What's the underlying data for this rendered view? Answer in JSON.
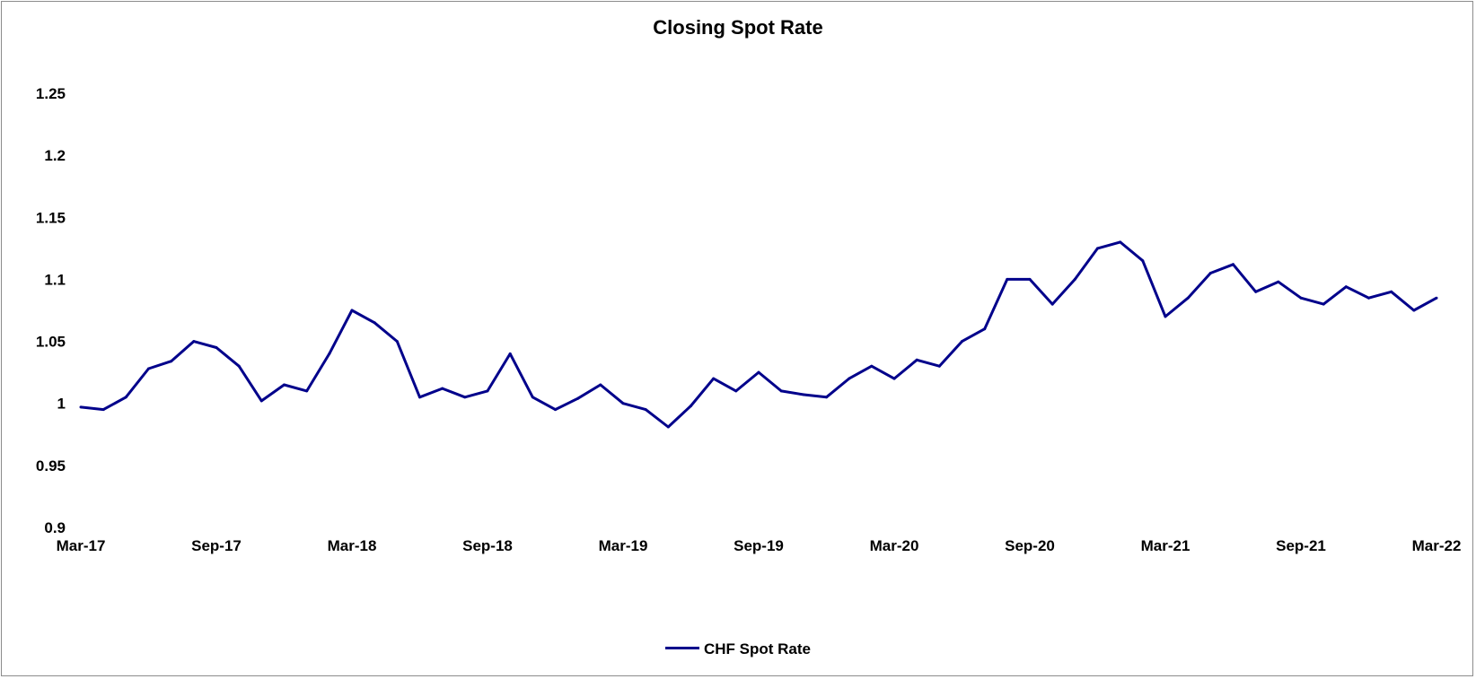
{
  "chart_data": {
    "type": "line",
    "title": "Closing Spot Rate",
    "xlabel": "",
    "ylabel": "",
    "x_ticks": [
      "Mar-17",
      "Sep-17",
      "Mar-18",
      "Sep-18",
      "Mar-19",
      "Sep-19",
      "Mar-20",
      "Sep-20",
      "Mar-21",
      "Sep-21",
      "Mar-22"
    ],
    "y_ticks": [
      "0.9",
      "0.95",
      "1",
      "1.05",
      "1.1",
      "1.15",
      "1.2",
      "1.25"
    ],
    "ylim": [
      0.9,
      1.25
    ],
    "xlim": [
      "Mar-17",
      "Mar-22"
    ],
    "grid": false,
    "legend_position": "bottom",
    "series": [
      {
        "name": "CHF Spot Rate",
        "color": "#00008B",
        "x": [
          "Mar-17",
          "Apr-17",
          "May-17",
          "Jun-17",
          "Jul-17",
          "Aug-17",
          "Sep-17",
          "Oct-17",
          "Nov-17",
          "Dec-17",
          "Jan-18",
          "Feb-18",
          "Mar-18",
          "Apr-18",
          "May-18",
          "Jun-18",
          "Jul-18",
          "Aug-18",
          "Sep-18",
          "Oct-18",
          "Nov-18",
          "Dec-18",
          "Jan-19",
          "Feb-19",
          "Mar-19",
          "Apr-19",
          "May-19",
          "Jun-19",
          "Jul-19",
          "Aug-19",
          "Sep-19",
          "Oct-19",
          "Nov-19",
          "Dec-19",
          "Jan-20",
          "Feb-20",
          "Mar-20",
          "Apr-20",
          "May-20",
          "Jun-20",
          "Jul-20",
          "Aug-20",
          "Sep-20",
          "Oct-20",
          "Nov-20",
          "Dec-20",
          "Jan-21",
          "Feb-21",
          "Mar-21",
          "Apr-21",
          "May-21",
          "Jun-21",
          "Jul-21",
          "Aug-21",
          "Sep-21",
          "Oct-21",
          "Nov-21",
          "Dec-21",
          "Jan-22",
          "Feb-22",
          "Mar-22"
        ],
        "values": [
          0.997,
          0.995,
          1.005,
          1.028,
          1.034,
          1.05,
          1.045,
          1.03,
          1.002,
          1.015,
          1.01,
          1.04,
          1.075,
          1.065,
          1.05,
          1.005,
          1.012,
          1.005,
          1.01,
          1.04,
          1.005,
          0.995,
          1.004,
          1.015,
          1.0,
          0.995,
          0.981,
          0.998,
          1.02,
          1.01,
          1.025,
          1.01,
          1.007,
          1.005,
          1.02,
          1.03,
          1.02,
          1.035,
          1.03,
          1.05,
          1.06,
          1.1,
          1.1,
          1.08,
          1.1,
          1.125,
          1.13,
          1.115,
          1.07,
          1.085,
          1.105,
          1.112,
          1.09,
          1.098,
          1.085,
          1.08,
          1.094,
          1.085,
          1.09,
          1.075,
          1.085
        ]
      }
    ]
  }
}
